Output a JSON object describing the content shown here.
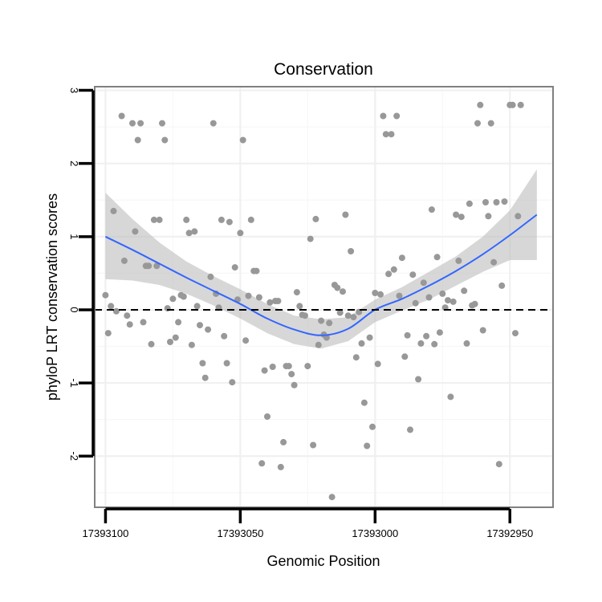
{
  "chart_data": {
    "type": "scatter",
    "title": "Conservation",
    "xlabel": "Genomic Position",
    "ylabel": "phyloP LRT conservation scores",
    "x_reversed": true,
    "xlim": [
      17393104,
      17392934
    ],
    "ylim": [
      -2.7,
      3.05
    ],
    "x_ticks": [
      17393100,
      17393050,
      17393000,
      17392950
    ],
    "x_tick_labels": [
      "17393100",
      "17393050",
      "17393000",
      "17392950"
    ],
    "y_ticks": [
      -2,
      -1,
      0,
      1,
      2,
      3
    ],
    "y_tick_labels": [
      "-2",
      "-1",
      "0",
      "1",
      "2",
      "3"
    ],
    "x_minor_ticks": [
      17393075,
      17393025,
      17392975
    ],
    "y_minor_ticks": [
      -2.5,
      -1.5,
      -0.5,
      0.5,
      1.5,
      2.5
    ],
    "grid": true,
    "reference_line": {
      "y": 0,
      "style": "dashed",
      "color": "#000000"
    },
    "point_color": "#989898",
    "smooth_color": "#3366ff",
    "ribbon_color": "#bdbdbd",
    "points": [
      [
        17393100,
        0.2
      ],
      [
        17393099,
        -0.32
      ],
      [
        17393098,
        0.05
      ],
      [
        17393097,
        1.35
      ],
      [
        17393096,
        -0.02
      ],
      [
        17393094,
        2.65
      ],
      [
        17393093,
        0.67
      ],
      [
        17393092,
        -0.08
      ],
      [
        17393091,
        -0.2
      ],
      [
        17393090,
        2.55
      ],
      [
        17393089,
        1.07
      ],
      [
        17393088,
        2.32
      ],
      [
        17393087,
        2.55
      ],
      [
        17393086,
        -0.17
      ],
      [
        17393085,
        0.6
      ],
      [
        17393084,
        0.6
      ],
      [
        17393083,
        -0.47
      ],
      [
        17393082,
        1.23
      ],
      [
        17393081,
        0.6
      ],
      [
        17393080,
        1.23
      ],
      [
        17393079,
        2.55
      ],
      [
        17393078,
        2.32
      ],
      [
        17393077,
        0.02
      ],
      [
        17393076,
        -0.44
      ],
      [
        17393075,
        0.15
      ],
      [
        17393074,
        -0.38
      ],
      [
        17393073,
        -0.17
      ],
      [
        17393072,
        0.2
      ],
      [
        17393071,
        0.18
      ],
      [
        17393070,
        1.23
      ],
      [
        17393069,
        1.05
      ],
      [
        17393068,
        -0.48
      ],
      [
        17393067,
        1.07
      ],
      [
        17393066,
        0.05
      ],
      [
        17393065,
        -0.21
      ],
      [
        17393064,
        -0.73
      ],
      [
        17393063,
        -0.93
      ],
      [
        17393062,
        -0.27
      ],
      [
        17393061,
        0.45
      ],
      [
        17393060,
        2.55
      ],
      [
        17393059,
        0.22
      ],
      [
        17393058,
        0.03
      ],
      [
        17393057,
        1.23
      ],
      [
        17393056,
        -0.36
      ],
      [
        17393055,
        -0.73
      ],
      [
        17393054,
        1.2
      ],
      [
        17393053,
        -0.99
      ],
      [
        17393052,
        0.58
      ],
      [
        17393051,
        0.14
      ],
      [
        17393050,
        1.05
      ],
      [
        17393049,
        2.32
      ],
      [
        17393048,
        -0.42
      ],
      [
        17393047,
        0.19
      ],
      [
        17393046,
        1.23
      ],
      [
        17393045,
        0.53
      ],
      [
        17393044,
        0.53
      ],
      [
        17393043,
        0.17
      ],
      [
        17393042,
        -2.1
      ],
      [
        17393041,
        -0.83
      ],
      [
        17393040,
        -1.46
      ],
      [
        17393039,
        0.1
      ],
      [
        17393038,
        -0.78
      ],
      [
        17393037,
        0.12
      ],
      [
        17393036,
        0.12
      ],
      [
        17393035,
        -2.15
      ],
      [
        17393034,
        -1.81
      ],
      [
        17393033,
        -0.77
      ],
      [
        17393032,
        -0.77
      ],
      [
        17393031,
        -0.88
      ],
      [
        17393030,
        -1.03
      ],
      [
        17393029,
        0.24
      ],
      [
        17393028,
        0.05
      ],
      [
        17393027,
        -0.07
      ],
      [
        17393026,
        -0.08
      ],
      [
        17393025,
        -0.77
      ],
      [
        17393024,
        0.97
      ],
      [
        17393023,
        -1.85
      ],
      [
        17393022,
        1.24
      ],
      [
        17393021,
        -0.48
      ],
      [
        17393020,
        -0.15
      ],
      [
        17393019,
        -0.34
      ],
      [
        17393018,
        -0.38
      ],
      [
        17393017,
        -0.18
      ],
      [
        17393016,
        -2.56
      ],
      [
        17393015,
        0.34
      ],
      [
        17393014,
        0.3
      ],
      [
        17393013,
        -0.04
      ],
      [
        17393012,
        0.25
      ],
      [
        17393011,
        1.3
      ],
      [
        17393010,
        -0.08
      ],
      [
        17393009,
        0.8
      ],
      [
        17393008,
        -0.1
      ],
      [
        17393007,
        -0.65
      ],
      [
        17393006,
        -0.03
      ],
      [
        17393005,
        -0.46
      ],
      [
        17393004,
        -1.27
      ],
      [
        17393003,
        -1.86
      ],
      [
        17393002,
        -0.38
      ],
      [
        17393001,
        -1.6
      ],
      [
        17393000,
        0.23
      ],
      [
        17392999,
        -0.74
      ],
      [
        17392998,
        0.21
      ],
      [
        17392997,
        2.65
      ],
      [
        17392996,
        2.4
      ],
      [
        17392995,
        0.49
      ],
      [
        17392994,
        2.4
      ],
      [
        17392993,
        0.55
      ],
      [
        17392992,
        2.65
      ],
      [
        17392991,
        0.19
      ],
      [
        17392990,
        0.71
      ],
      [
        17392989,
        -0.64
      ],
      [
        17392988,
        -0.35
      ],
      [
        17392987,
        -1.64
      ],
      [
        17392986,
        0.48
      ],
      [
        17392985,
        0.09
      ],
      [
        17392984,
        -0.95
      ],
      [
        17392983,
        -0.46
      ],
      [
        17392982,
        0.37
      ],
      [
        17392981,
        -0.36
      ],
      [
        17392980,
        0.17
      ],
      [
        17392979,
        1.37
      ],
      [
        17392978,
        -0.47
      ],
      [
        17392977,
        0.72
      ],
      [
        17392976,
        -0.31
      ],
      [
        17392975,
        0.22
      ],
      [
        17392974,
        0.03
      ],
      [
        17392973,
        0.13
      ],
      [
        17392972,
        -1.19
      ],
      [
        17392971,
        0.11
      ],
      [
        17392970,
        1.3
      ],
      [
        17392969,
        0.67
      ],
      [
        17392968,
        1.27
      ],
      [
        17392967,
        0.26
      ],
      [
        17392966,
        -0.46
      ],
      [
        17392965,
        1.45
      ],
      [
        17392964,
        0.06
      ],
      [
        17392963,
        0.08
      ],
      [
        17392962,
        2.55
      ],
      [
        17392961,
        2.8
      ],
      [
        17392960,
        -0.28
      ],
      [
        17392959,
        1.47
      ],
      [
        17392958,
        1.28
      ],
      [
        17392957,
        2.55
      ],
      [
        17392956,
        0.65
      ],
      [
        17392955,
        1.47
      ],
      [
        17392954,
        -2.11
      ],
      [
        17392953,
        0.33
      ],
      [
        17392952,
        1.48
      ],
      [
        17392950,
        2.8
      ],
      [
        17392949,
        2.8
      ],
      [
        17392948,
        -0.32
      ],
      [
        17392947,
        1.28
      ],
      [
        17392946,
        2.8
      ]
    ],
    "smooth": {
      "x": [
        17393100,
        17393090,
        17393080,
        17393070,
        17393060,
        17393050,
        17393040,
        17393030,
        17393020,
        17393010,
        17393000,
        17392990,
        17392980,
        17392970,
        17392960,
        17392950,
        17392940
      ],
      "y": [
        1.0,
        0.82,
        0.63,
        0.44,
        0.26,
        0.08,
        -0.12,
        -0.27,
        -0.35,
        -0.26,
        0.0,
        0.15,
        0.33,
        0.53,
        0.76,
        1.02,
        1.3
      ],
      "lower": [
        0.42,
        0.4,
        0.34,
        0.22,
        0.06,
        -0.12,
        -0.32,
        -0.47,
        -0.53,
        -0.43,
        -0.17,
        -0.01,
        0.14,
        0.33,
        0.52,
        0.68,
        0.68
      ],
      "upper": [
        1.6,
        1.24,
        0.92,
        0.66,
        0.46,
        0.28,
        0.08,
        -0.08,
        -0.13,
        -0.1,
        0.14,
        0.31,
        0.52,
        0.73,
        1.0,
        1.36,
        1.92
      ]
    }
  }
}
